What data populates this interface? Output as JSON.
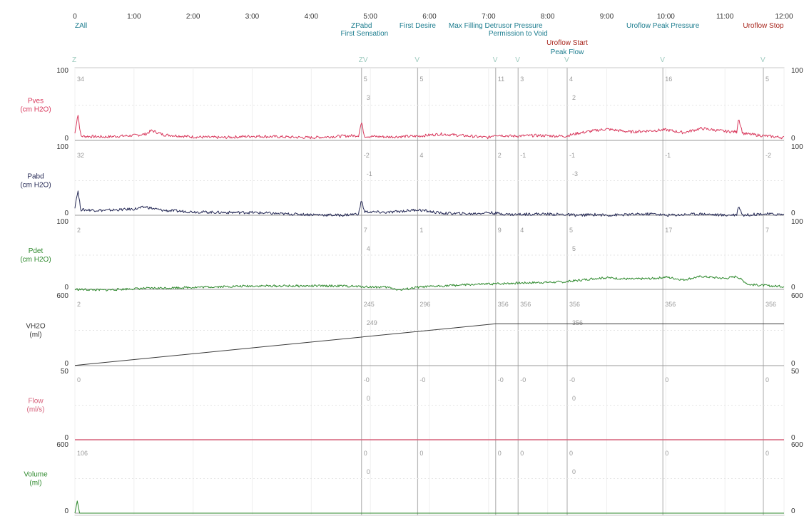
{
  "colors": {
    "Pves": "#d93a5e",
    "Pabd": "#262a56",
    "Pdet": "#2f8a2e",
    "VH2O": "#3a3a3a",
    "Flow": "#d6607a",
    "Volume": "#2f8a2e",
    "event_teal": "#1d7d8f",
    "event_red": "#a8271e"
  },
  "chart_data": {
    "type": "line",
    "x_unit": "min",
    "xlim": [
      0,
      12
    ],
    "x_ticks": [
      "0",
      "1:00",
      "2:00",
      "3:00",
      "4:00",
      "5:00",
      "6:00",
      "7:00",
      "8:00",
      "9:00",
      "10:00",
      "11:00",
      "12:00"
    ],
    "events": [
      {
        "label": "ZAll",
        "time": 0.0,
        "color": "teal",
        "row": 1
      },
      {
        "label": "ZPabd",
        "time": 4.85,
        "color": "teal",
        "row": 1
      },
      {
        "label": "First Sensation",
        "time": 4.9,
        "color": "teal",
        "row": 2
      },
      {
        "label": "First Desire",
        "time": 5.8,
        "color": "teal",
        "row": 1
      },
      {
        "label": "Max Filling Detrusor Pressure",
        "time": 7.12,
        "color": "teal",
        "row": 1
      },
      {
        "label": "Permission to Void",
        "time": 7.5,
        "color": "teal",
        "row": 2
      },
      {
        "label": "Uroflow Start",
        "time": 8.33,
        "color": "red",
        "row": 3
      },
      {
        "label": "Peak Flow",
        "time": 8.33,
        "color": "teal",
        "row": 4
      },
      {
        "label": "Uroflow Peak Pressure",
        "time": 9.95,
        "color": "teal",
        "row": 1
      },
      {
        "label": "Uroflow Stop",
        "time": 11.65,
        "color": "red",
        "row": 1
      }
    ],
    "top_markers": [
      {
        "label": "Z",
        "time": 0.0
      },
      {
        "label": "ZV",
        "time": 4.85
      },
      {
        "label": "V",
        "time": 5.8
      },
      {
        "label": "V",
        "time": 7.12
      },
      {
        "label": "V",
        "time": 7.5
      },
      {
        "label": "V",
        "time": 8.33
      },
      {
        "label": "V",
        "time": 9.95
      },
      {
        "label": "V",
        "time": 11.65
      }
    ],
    "channels": [
      {
        "name": "Pves",
        "unit": "(cm H2O)",
        "ylim": [
          0,
          100
        ],
        "color_key": "Pves",
        "annotations": [
          [
            "34",
            ""
          ],
          [
            "5",
            "3"
          ],
          [
            "5",
            ""
          ],
          [
            "11",
            ""
          ],
          [
            "3",
            ""
          ],
          [
            "4",
            "2"
          ],
          [
            "16",
            ""
          ],
          [
            "5",
            ""
          ]
        ],
        "x": [
          0,
          0.05,
          0.1,
          0.5,
          1.0,
          1.2,
          1.3,
          1.5,
          2.0,
          2.5,
          3.0,
          3.5,
          4.0,
          4.5,
          4.8,
          4.85,
          4.9,
          5.3,
          5.8,
          6.2,
          6.7,
          7.0,
          7.1,
          7.4,
          7.8,
          8.3,
          8.5,
          8.8,
          9.0,
          9.4,
          9.8,
          10.0,
          10.3,
          10.6,
          11.0,
          11.2,
          11.23,
          11.3,
          11.6,
          12.0
        ],
        "y": [
          10,
          38,
          6,
          5,
          7,
          9,
          14,
          8,
          5,
          4,
          6,
          5,
          4,
          6,
          7,
          26,
          6,
          5,
          6,
          9,
          6,
          4,
          8,
          6,
          7,
          6,
          10,
          14,
          16,
          12,
          14,
          15,
          11,
          17,
          13,
          12,
          32,
          10,
          7,
          4
        ]
      },
      {
        "name": "Pabd",
        "unit": "(cm H2O)",
        "ylim": [
          0,
          100
        ],
        "color_key": "Pabd",
        "annotations": [
          [
            "32",
            ""
          ],
          [
            "-2",
            "-1"
          ],
          [
            "4",
            ""
          ],
          [
            "2",
            ""
          ],
          [
            "-1",
            ""
          ],
          [
            "-1",
            "-3"
          ],
          [
            "-1",
            ""
          ],
          [
            "-2",
            ""
          ]
        ],
        "x": [
          0,
          0.05,
          0.1,
          0.5,
          1.0,
          1.2,
          1.3,
          1.5,
          2.0,
          2.5,
          3.0,
          3.5,
          4.0,
          4.5,
          4.8,
          4.85,
          4.9,
          5.3,
          5.8,
          6.2,
          6.7,
          7.0,
          7.1,
          7.4,
          7.8,
          8.3,
          8.5,
          8.8,
          9.0,
          9.4,
          9.8,
          10.0,
          10.3,
          10.6,
          11.0,
          11.2,
          11.23,
          11.3,
          11.6,
          12.0
        ],
        "y": [
          12,
          36,
          8,
          7,
          9,
          12,
          10,
          7,
          5,
          4,
          4,
          2,
          1,
          0,
          2,
          22,
          5,
          4,
          8,
          3,
          2,
          4,
          3,
          1,
          2,
          1,
          0,
          1,
          0,
          1,
          2,
          0,
          1,
          2,
          0,
          1,
          14,
          0,
          2,
          1
        ]
      },
      {
        "name": "Pdet",
        "unit": "(cm H2O)",
        "ylim": [
          0,
          100
        ],
        "color_key": "Pdet",
        "annotations": [
          [
            "2",
            ""
          ],
          [
            "7",
            "4"
          ],
          [
            "1",
            ""
          ],
          [
            "9",
            ""
          ],
          [
            "4",
            ""
          ],
          [
            "5",
            "5"
          ],
          [
            "17",
            ""
          ],
          [
            "7",
            ""
          ]
        ],
        "x": [
          0,
          0.5,
          1.0,
          1.5,
          2.0,
          2.5,
          3.0,
          3.5,
          4.0,
          4.5,
          4.85,
          5.3,
          5.5,
          5.8,
          6.2,
          6.7,
          7.1,
          7.4,
          7.8,
          8.3,
          8.5,
          8.8,
          9.0,
          9.4,
          9.8,
          10.0,
          10.3,
          10.6,
          11.0,
          11.2,
          11.4,
          11.6,
          12.0
        ],
        "y": [
          0,
          -1,
          1,
          2,
          3,
          4,
          5,
          5,
          5,
          5,
          4,
          3,
          -1,
          3,
          5,
          7,
          8,
          9,
          10,
          11,
          13,
          16,
          17,
          15,
          16,
          18,
          14,
          19,
          16,
          19,
          7,
          6,
          4
        ]
      },
      {
        "name": "VH2O",
        "unit": "(ml)",
        "ylim": [
          0,
          600
        ],
        "color_key": "VH2O",
        "annotations": [
          [
            "2",
            ""
          ],
          [
            "245",
            "249"
          ],
          [
            "296",
            ""
          ],
          [
            "356",
            ""
          ],
          [
            "356",
            ""
          ],
          [
            "356",
            "356"
          ],
          [
            "356",
            ""
          ],
          [
            "356",
            ""
          ]
        ],
        "x": [
          0,
          7.12,
          12.0
        ],
        "y": [
          2,
          356,
          356
        ]
      },
      {
        "name": "Flow",
        "unit": "(ml/s)",
        "ylim": [
          0,
          50
        ],
        "color_key": "Flow",
        "annotations": [
          [
            "0",
            ""
          ],
          [
            "-0",
            "0"
          ],
          [
            "-0",
            ""
          ],
          [
            "-0",
            ""
          ],
          [
            "-0",
            ""
          ],
          [
            "-0",
            "0"
          ],
          [
            "0",
            ""
          ],
          [
            "0",
            ""
          ]
        ],
        "x": [
          0,
          12.0
        ],
        "y": [
          0,
          0
        ]
      },
      {
        "name": "Volume",
        "unit": "(ml)",
        "ylim": [
          0,
          600
        ],
        "color_key": "Volume",
        "annotations": [
          [
            "106",
            ""
          ],
          [
            "0",
            "0"
          ],
          [
            "0",
            ""
          ],
          [
            "0",
            ""
          ],
          [
            "0",
            ""
          ],
          [
            "0",
            "0"
          ],
          [
            "0",
            ""
          ],
          [
            "0",
            ""
          ]
        ],
        "x": [
          0,
          0.04,
          0.08,
          12.0
        ],
        "y": [
          0,
          106,
          0,
          0
        ]
      }
    ]
  }
}
